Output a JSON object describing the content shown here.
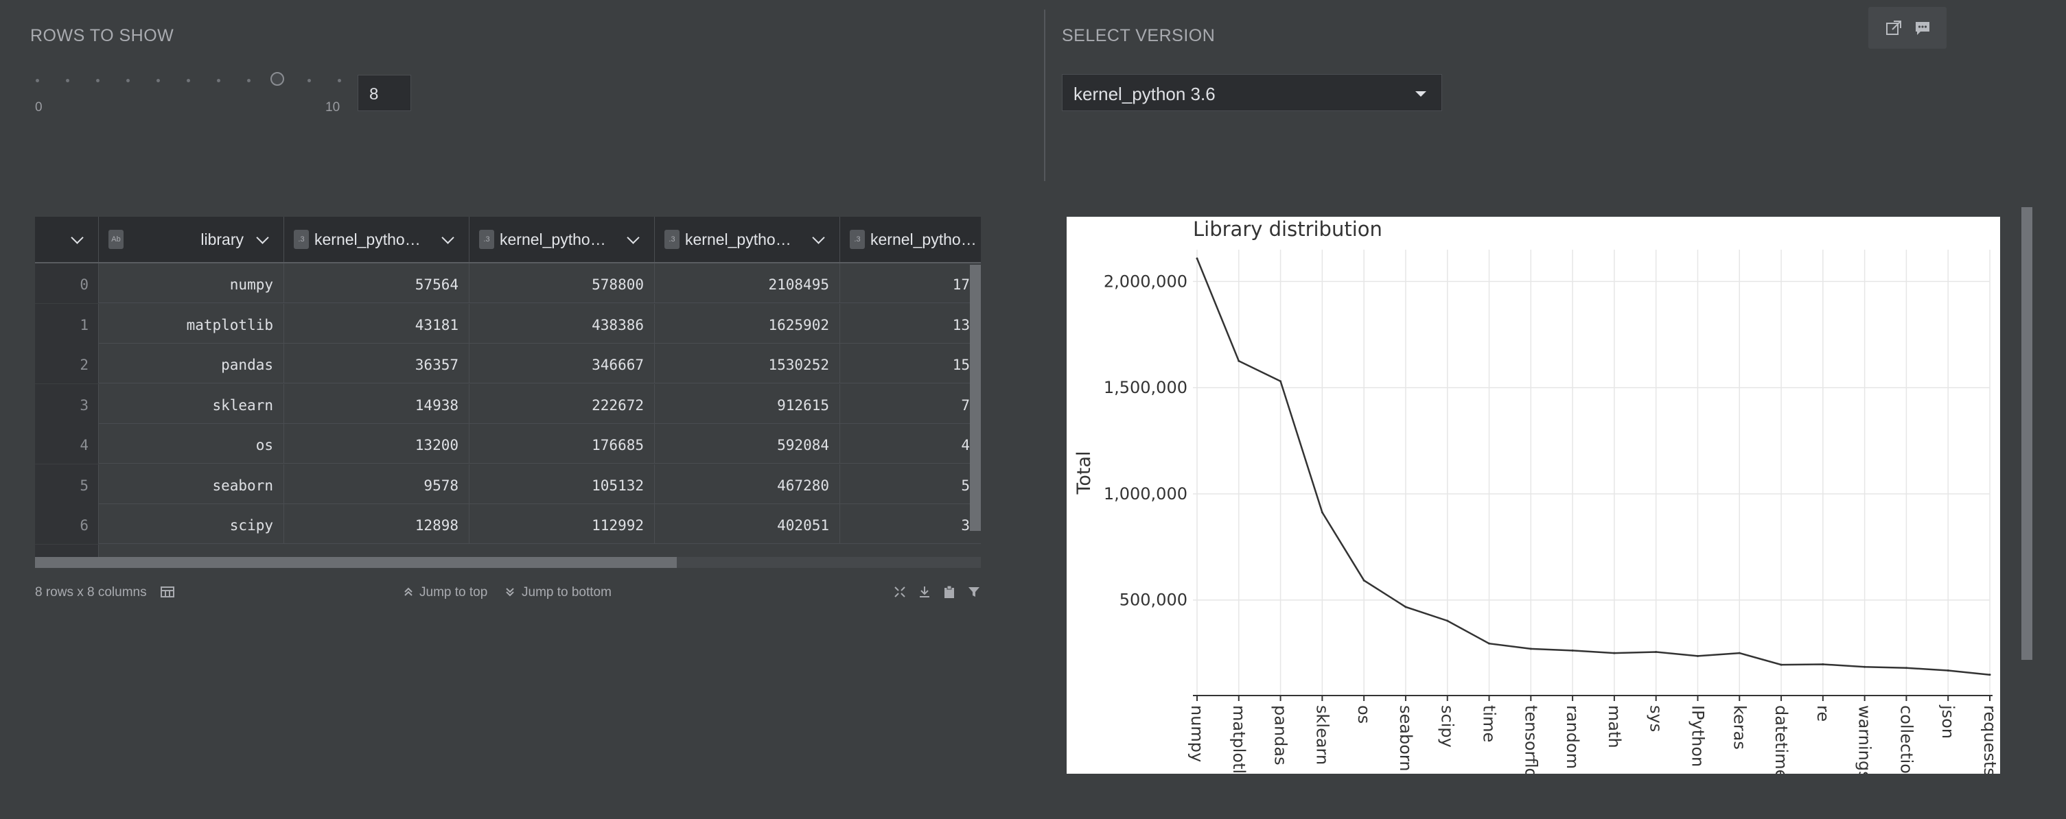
{
  "rows_control": {
    "label": "ROWS TO SHOW",
    "min": "0",
    "max": "10",
    "value": "8",
    "slider_fraction": 0.8
  },
  "version_control": {
    "label": "SELECT VERSION",
    "selected": "kernel_python 3.6"
  },
  "toolbar": {
    "icons": [
      "external-link-icon",
      "comment-icon"
    ]
  },
  "table": {
    "columns": [
      {
        "label": "",
        "type": ""
      },
      {
        "label": "library",
        "type": "Ab"
      },
      {
        "label": "kernel_pytho…",
        "type": ".3"
      },
      {
        "label": "kernel_pytho…",
        "type": ".3"
      },
      {
        "label": "kernel_pytho…",
        "type": ".3"
      },
      {
        "label": "kernel_pytho…",
        "type": ".3"
      }
    ],
    "rows": [
      [
        "0",
        "numpy",
        "57564",
        "578800",
        "2108495",
        "17"
      ],
      [
        "1",
        "matplotlib",
        "43181",
        "438386",
        "1625902",
        "13"
      ],
      [
        "2",
        "pandas",
        "36357",
        "346667",
        "1530252",
        "15"
      ],
      [
        "3",
        "sklearn",
        "14938",
        "222672",
        "912615",
        "7"
      ],
      [
        "4",
        "os",
        "13200",
        "176685",
        "592084",
        "4"
      ],
      [
        "5",
        "seaborn",
        "9578",
        "105132",
        "467280",
        "5"
      ],
      [
        "6",
        "scipy",
        "12898",
        "112992",
        "402051",
        "3"
      ]
    ]
  },
  "footer": {
    "summary": "8 rows x 8 columns",
    "jump_top": "Jump to top",
    "jump_bottom": "Jump to bottom"
  },
  "colors": {
    "background": "#3c3f41",
    "panel": "#2b2d30",
    "chart_line": "#333333"
  },
  "chart_data": {
    "type": "line",
    "title": "Library distribution",
    "ylabel": "Total",
    "xlabel": "",
    "categories": [
      "numpy",
      "matplotli",
      "pandas",
      "sklearn",
      "os",
      "seaborn",
      "scipy",
      "time",
      "tensorflo",
      "random",
      "math",
      "sys",
      "IPython",
      "keras",
      "datetime",
      "re",
      "warnings",
      "collection",
      "json",
      "requests"
    ],
    "values": [
      2108495,
      1625902,
      1530252,
      912615,
      592084,
      467280,
      402051,
      295000,
      270000,
      262000,
      250000,
      255000,
      236000,
      250000,
      195000,
      197000,
      185000,
      180000,
      168000,
      148000
    ],
    "yticks": [
      "500,000",
      "1,000,000",
      "1,500,000",
      "2,000,000"
    ],
    "ytick_values": [
      500000,
      1000000,
      1500000,
      2000000
    ],
    "ylim": [
      50000,
      2150000
    ],
    "grid": true
  }
}
